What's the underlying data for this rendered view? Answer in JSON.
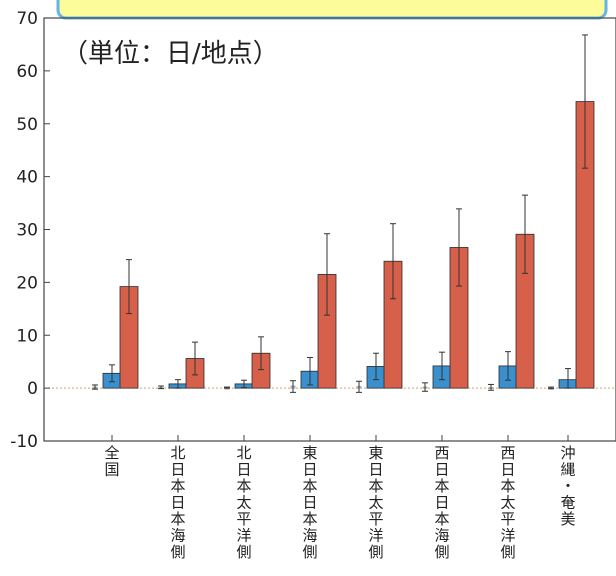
{
  "chart_data": {
    "type": "bar",
    "unit_label": "（単位：日/地点）",
    "categories": [
      "全国",
      "北日本日本海側",
      "北日本太平洋側",
      "東日本日本海側",
      "東日本太平洋側",
      "西日本日本海側",
      "西日本太平洋側",
      "沖縄・奄美"
    ],
    "series": [
      {
        "color": "#d8d8d8",
        "values": [
          0.2,
          0.1,
          0.0,
          0.4,
          0.3,
          0.2,
          0.1,
          0.0
        ],
        "err_low": [
          0.4,
          0.2,
          0.0,
          1.2,
          1.1,
          0.8,
          0.5,
          0.1
        ],
        "err_high": [
          0.4,
          0.3,
          0.2,
          1.0,
          1.0,
          0.8,
          0.6,
          0.2
        ]
      },
      {
        "color": "#3a8fcd",
        "values": [
          2.8,
          0.8,
          0.8,
          3.2,
          4.1,
          4.2,
          4.2,
          1.6
        ],
        "err_low": [
          1.6,
          0.8,
          0.7,
          2.6,
          2.5,
          2.6,
          2.7,
          1.6
        ],
        "err_high": [
          1.6,
          0.8,
          0.7,
          2.6,
          2.5,
          2.6,
          2.7,
          2.1
        ]
      },
      {
        "color": "#d6604a",
        "values": [
          19.2,
          5.6,
          6.6,
          21.5,
          24.0,
          26.6,
          29.1,
          54.2
        ],
        "err_low": [
          5.1,
          3.1,
          3.1,
          7.7,
          7.1,
          7.3,
          7.4,
          12.6
        ],
        "err_high": [
          5.1,
          3.1,
          3.1,
          7.7,
          7.1,
          7.3,
          7.4,
          12.6
        ]
      }
    ],
    "ylim": [
      -10,
      70
    ],
    "yticks": [
      -10,
      0,
      10,
      20,
      30,
      40,
      50,
      60,
      70
    ],
    "ytick_labels": [
      "-10",
      "0",
      "10",
      "20",
      "30",
      "40",
      "50",
      "60",
      "70"
    ],
    "zero_line": true,
    "grid": false
  },
  "colors": {
    "banner_fill": "#fdfc9a",
    "banner_border": "#63b5e6",
    "axis": "#444444",
    "zero_line": "#c9a46a"
  }
}
